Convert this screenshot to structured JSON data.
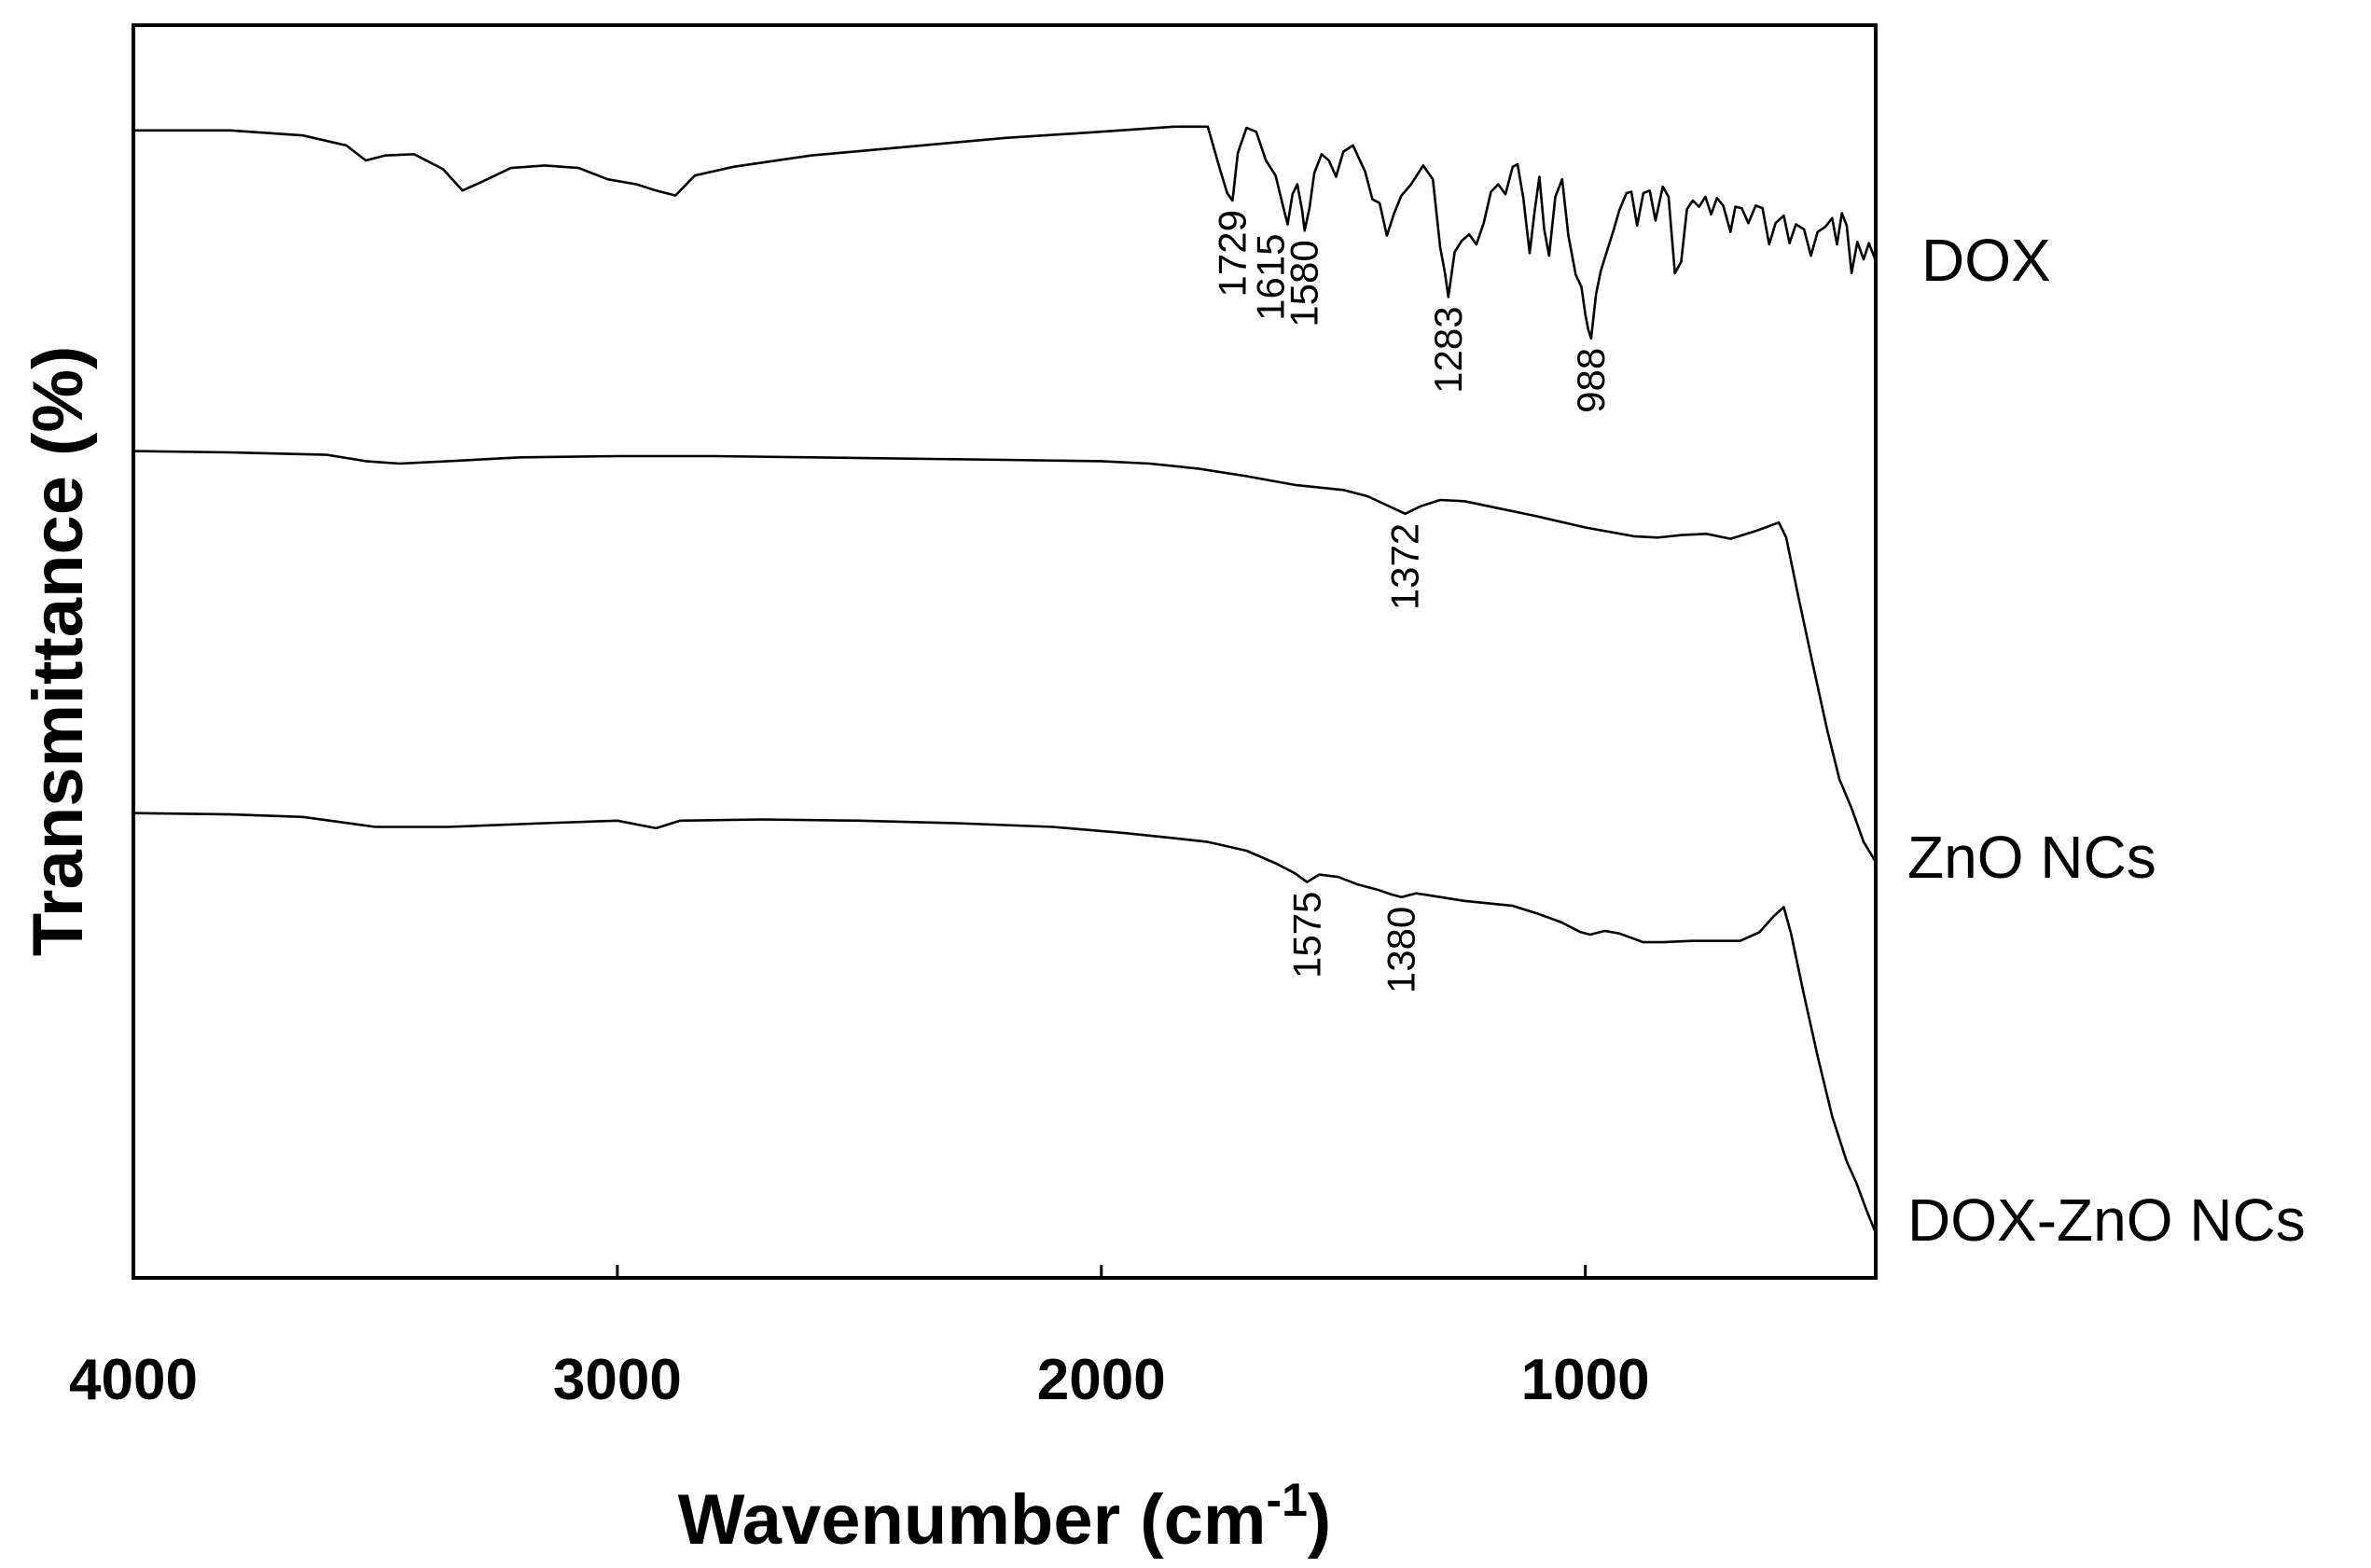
{
  "chart_data": {
    "type": "line",
    "title": "",
    "xlabel": "Wavenumber (cm",
    "xlabel_sup": "-1",
    "xlabel_close": ")",
    "ylabel": "Transmittance (%)",
    "xlim": [
      4000,
      400
    ],
    "x_reversed": true,
    "ylim": [
      0,
      100
    ],
    "y_ticks_shown": false,
    "x_ticks": [
      4000,
      3000,
      2000,
      1000
    ],
    "tick_labels": [
      "4000",
      "3000",
      "2000",
      "1000"
    ],
    "series": [
      {
        "name": "DOX",
        "label": "DOX",
        "points": [
          [
            4000,
            91.6
          ],
          [
            3800,
            91.6
          ],
          [
            3650,
            91.2
          ],
          [
            3560,
            90.4
          ],
          [
            3520,
            89.2
          ],
          [
            3480,
            89.6
          ],
          [
            3420,
            89.7
          ],
          [
            3360,
            88.5
          ],
          [
            3320,
            86.8
          ],
          [
            3280,
            87.5
          ],
          [
            3220,
            88.6
          ],
          [
            3150,
            88.8
          ],
          [
            3080,
            88.6
          ],
          [
            3020,
            87.7
          ],
          [
            2960,
            87.3
          ],
          [
            2920,
            86.8
          ],
          [
            2880,
            86.4
          ],
          [
            2840,
            88.0
          ],
          [
            2760,
            88.7
          ],
          [
            2600,
            89.6
          ],
          [
            2400,
            90.3
          ],
          [
            2200,
            91.0
          ],
          [
            2000,
            91.5
          ],
          [
            1850,
            91.9
          ],
          [
            1780,
            91.9
          ],
          [
            1755,
            88.5
          ],
          [
            1740,
            86.6
          ],
          [
            1729,
            86.0
          ],
          [
            1718,
            89.8
          ],
          [
            1700,
            91.8
          ],
          [
            1680,
            91.5
          ],
          [
            1660,
            89.2
          ],
          [
            1640,
            88.0
          ],
          [
            1625,
            85.6
          ],
          [
            1615,
            84.1
          ],
          [
            1605,
            86.5
          ],
          [
            1595,
            87.3
          ],
          [
            1585,
            85.2
          ],
          [
            1580,
            83.6
          ],
          [
            1570,
            85.4
          ],
          [
            1560,
            88.2
          ],
          [
            1545,
            89.7
          ],
          [
            1530,
            89.2
          ],
          [
            1515,
            87.9
          ],
          [
            1500,
            89.9
          ],
          [
            1480,
            90.4
          ],
          [
            1455,
            88.3
          ],
          [
            1440,
            86.1
          ],
          [
            1425,
            85.8
          ],
          [
            1410,
            83.2
          ],
          [
            1395,
            85.0
          ],
          [
            1380,
            86.4
          ],
          [
            1360,
            87.3
          ],
          [
            1335,
            88.8
          ],
          [
            1315,
            87.7
          ],
          [
            1300,
            82.3
          ],
          [
            1290,
            80.2
          ],
          [
            1283,
            78.3
          ],
          [
            1270,
            81.9
          ],
          [
            1255,
            82.8
          ],
          [
            1240,
            83.3
          ],
          [
            1225,
            82.5
          ],
          [
            1210,
            84.2
          ],
          [
            1195,
            86.7
          ],
          [
            1180,
            87.3
          ],
          [
            1165,
            86.5
          ],
          [
            1150,
            88.7
          ],
          [
            1140,
            88.9
          ],
          [
            1128,
            86.2
          ],
          [
            1115,
            81.8
          ],
          [
            1105,
            85.1
          ],
          [
            1095,
            87.9
          ],
          [
            1085,
            83.7
          ],
          [
            1075,
            81.6
          ],
          [
            1062,
            86.3
          ],
          [
            1048,
            87.7
          ],
          [
            1035,
            83.2
          ],
          [
            1020,
            80.1
          ],
          [
            1008,
            79.1
          ],
          [
            1000,
            76.9
          ],
          [
            994,
            75.7
          ],
          [
            988,
            75.0
          ],
          [
            978,
            78.5
          ],
          [
            968,
            80.4
          ],
          [
            955,
            82.0
          ],
          [
            942,
            83.6
          ],
          [
            930,
            85.2
          ],
          [
            915,
            86.6
          ],
          [
            905,
            86.7
          ],
          [
            893,
            84.0
          ],
          [
            880,
            86.6
          ],
          [
            867,
            86.8
          ],
          [
            855,
            84.4
          ],
          [
            840,
            87.1
          ],
          [
            828,
            86.3
          ],
          [
            815,
            80.2
          ],
          [
            802,
            81.1
          ],
          [
            790,
            85.3
          ],
          [
            778,
            86.0
          ],
          [
            765,
            85.5
          ],
          [
            752,
            86.3
          ],
          [
            740,
            84.9
          ],
          [
            728,
            86.2
          ],
          [
            715,
            85.6
          ],
          [
            700,
            83.5
          ],
          [
            690,
            85.5
          ],
          [
            677,
            85.4
          ],
          [
            663,
            84.2
          ],
          [
            648,
            85.6
          ],
          [
            634,
            85.4
          ],
          [
            620,
            82.5
          ],
          [
            607,
            84.2
          ],
          [
            590,
            84.8
          ],
          [
            578,
            82.6
          ],
          [
            565,
            84.1
          ],
          [
            548,
            83.7
          ],
          [
            534,
            81.6
          ],
          [
            520,
            83.5
          ],
          [
            504,
            83.9
          ],
          [
            490,
            84.6
          ],
          [
            480,
            82.5
          ],
          [
            470,
            85.0
          ],
          [
            460,
            84.0
          ],
          [
            450,
            80.2
          ],
          [
            438,
            82.7
          ],
          [
            425,
            81.3
          ],
          [
            414,
            82.6
          ],
          [
            400,
            81.2
          ]
        ]
      },
      {
        "name": "ZnO NCs",
        "label": "ZnO NCs",
        "points": [
          [
            4000,
            66.0
          ],
          [
            3800,
            65.9
          ],
          [
            3600,
            65.7
          ],
          [
            3520,
            65.2
          ],
          [
            3450,
            65.0
          ],
          [
            3350,
            65.2
          ],
          [
            3200,
            65.5
          ],
          [
            3000,
            65.6
          ],
          [
            2800,
            65.6
          ],
          [
            2600,
            65.5
          ],
          [
            2400,
            65.4
          ],
          [
            2200,
            65.3
          ],
          [
            2000,
            65.2
          ],
          [
            1900,
            65.0
          ],
          [
            1800,
            64.6
          ],
          [
            1700,
            64.0
          ],
          [
            1600,
            63.3
          ],
          [
            1500,
            62.9
          ],
          [
            1450,
            62.4
          ],
          [
            1400,
            61.5
          ],
          [
            1372,
            61.0
          ],
          [
            1340,
            61.6
          ],
          [
            1300,
            62.1
          ],
          [
            1250,
            62.0
          ],
          [
            1200,
            61.6
          ],
          [
            1100,
            60.8
          ],
          [
            1000,
            59.9
          ],
          [
            900,
            59.2
          ],
          [
            850,
            59.1
          ],
          [
            800,
            59.3
          ],
          [
            750,
            59.4
          ],
          [
            700,
            59.0
          ],
          [
            650,
            59.6
          ],
          [
            600,
            60.3
          ],
          [
            585,
            59.1
          ],
          [
            560,
            54.4
          ],
          [
            530,
            49.0
          ],
          [
            500,
            43.7
          ],
          [
            475,
            39.8
          ],
          [
            450,
            37.5
          ],
          [
            425,
            34.8
          ],
          [
            400,
            33.2
          ]
        ]
      },
      {
        "name": "DOX-ZnO NCs",
        "label": "DOX-ZnO NCs",
        "points": [
          [
            4000,
            37.1
          ],
          [
            3800,
            37.0
          ],
          [
            3650,
            36.8
          ],
          [
            3500,
            36.0
          ],
          [
            3350,
            36.0
          ],
          [
            3150,
            36.3
          ],
          [
            3000,
            36.5
          ],
          [
            2920,
            35.9
          ],
          [
            2870,
            36.5
          ],
          [
            2700,
            36.6
          ],
          [
            2500,
            36.5
          ],
          [
            2300,
            36.3
          ],
          [
            2100,
            36.0
          ],
          [
            1950,
            35.5
          ],
          [
            1850,
            35.1
          ],
          [
            1780,
            34.8
          ],
          [
            1700,
            34.1
          ],
          [
            1640,
            33.1
          ],
          [
            1600,
            32.3
          ],
          [
            1575,
            31.6
          ],
          [
            1550,
            32.2
          ],
          [
            1510,
            32.0
          ],
          [
            1470,
            31.4
          ],
          [
            1430,
            31.0
          ],
          [
            1400,
            30.6
          ],
          [
            1380,
            30.4
          ],
          [
            1350,
            30.7
          ],
          [
            1300,
            30.4
          ],
          [
            1250,
            30.1
          ],
          [
            1200,
            29.9
          ],
          [
            1150,
            29.7
          ],
          [
            1100,
            29.1
          ],
          [
            1050,
            28.4
          ],
          [
            1010,
            27.6
          ],
          [
            990,
            27.4
          ],
          [
            960,
            27.7
          ],
          [
            930,
            27.5
          ],
          [
            880,
            26.8
          ],
          [
            840,
            26.8
          ],
          [
            780,
            26.9
          ],
          [
            720,
            26.9
          ],
          [
            680,
            26.9
          ],
          [
            640,
            27.6
          ],
          [
            610,
            28.9
          ],
          [
            590,
            29.6
          ],
          [
            575,
            27.5
          ],
          [
            550,
            22.9
          ],
          [
            520,
            17.7
          ],
          [
            490,
            12.9
          ],
          [
            460,
            9.3
          ],
          [
            440,
            7.6
          ],
          [
            420,
            5.5
          ],
          [
            400,
            3.6
          ]
        ]
      }
    ],
    "peak_annotations": [
      {
        "series": "DOX",
        "wavenumber": 1729,
        "label": "1729"
      },
      {
        "series": "DOX",
        "wavenumber": 1615,
        "label": "1615"
      },
      {
        "series": "DOX",
        "wavenumber": 1580,
        "label": "1580"
      },
      {
        "series": "DOX",
        "wavenumber": 1283,
        "label": "1283"
      },
      {
        "series": "DOX",
        "wavenumber": 988,
        "label": "988"
      },
      {
        "series": "ZnO NCs",
        "wavenumber": 1372,
        "label": "1372"
      },
      {
        "series": "DOX-ZnO NCs",
        "wavenumber": 1575,
        "label": "1575"
      },
      {
        "series": "DOX-ZnO NCs",
        "wavenumber": 1380,
        "label": "1380"
      }
    ],
    "grid": false,
    "legend": "none (labels at right of each trace)"
  }
}
